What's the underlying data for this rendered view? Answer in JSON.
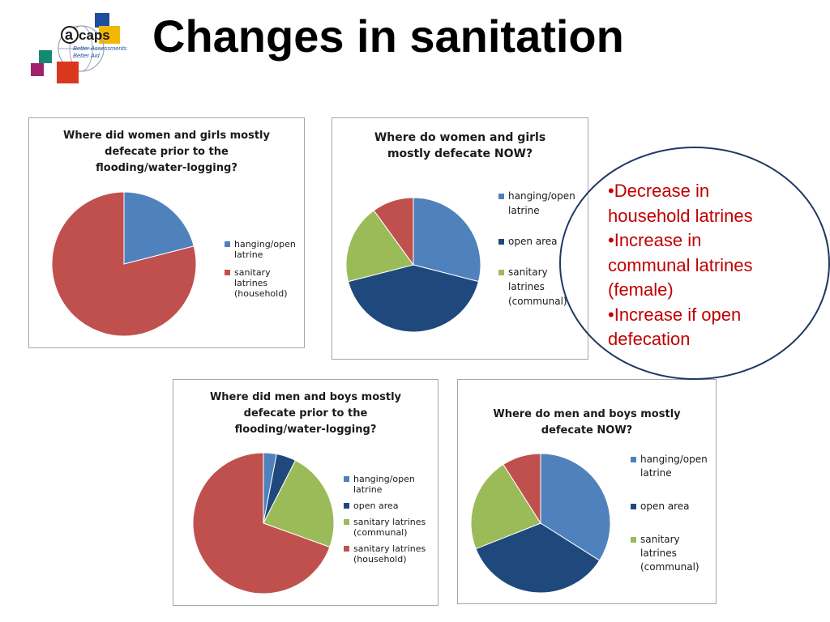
{
  "header": {
    "title": "Changes in sanitation",
    "logo": {
      "text": "caps",
      "tagline": [
        "Better Assessments",
        "Better Aid"
      ]
    }
  },
  "colors": {
    "hanging": "#4f81bd",
    "open": "#1f497d",
    "communal": "#9bbb59",
    "household": "#c0504d",
    "callout_text": "#c00000",
    "callout_border": "#1f3864"
  },
  "callout": {
    "items": [
      {
        "line1": "•Decrease in",
        "line2": "household latrines"
      },
      {
        "line1": "•Increase in",
        "line2": "communal latrines",
        "line3": "(female)"
      },
      {
        "line1": "•Increase if open",
        "line2": "defecation"
      }
    ]
  },
  "chart_data": [
    {
      "type": "pie",
      "title": [
        "Where did women and girls  mostly",
        "defecate prior to the",
        "flooding/water-logging?"
      ],
      "legend_position": "right",
      "slices": [
        {
          "label": "hanging/open latrine",
          "lines": [
            "hanging/open",
            "latrine"
          ],
          "value": 21,
          "color": "#4f81bd"
        },
        {
          "label": "sanitary latrines (household)",
          "lines": [
            "sanitary latrines",
            "(household)"
          ],
          "value": 79,
          "color": "#c0504d"
        }
      ]
    },
    {
      "type": "pie",
      "title": [
        "Where do women and girls",
        "mostly defecate NOW?"
      ],
      "legend_position": "right",
      "slices": [
        {
          "label": "hanging/open latrine",
          "lines": [
            "hanging/open",
            "latrine"
          ],
          "value": 29,
          "color": "#4f81bd"
        },
        {
          "label": "open area",
          "lines": [
            "open area"
          ],
          "value": 42,
          "color": "#1f497d"
        },
        {
          "label": "sanitary latrines (communal)",
          "lines": [
            "sanitary",
            "latrines",
            "(communal)"
          ],
          "value": 19,
          "color": "#9bbb59"
        },
        {
          "label": "",
          "lines": [],
          "value": 10,
          "color": "#c0504d"
        }
      ]
    },
    {
      "type": "pie",
      "title": [
        "Where did men and boys  mostly",
        "defecate prior to the",
        "flooding/water-logging?"
      ],
      "legend_position": "right",
      "slices": [
        {
          "label": "hanging/open latrine",
          "lines": [
            "hanging/open",
            "latrine"
          ],
          "value": 3,
          "color": "#4f81bd"
        },
        {
          "label": "open area",
          "lines": [
            "open area"
          ],
          "value": 4.5,
          "color": "#1f497d"
        },
        {
          "label": "sanitary latrines (communal)",
          "lines": [
            "sanitary latrines",
            "(communal)"
          ],
          "value": 23,
          "color": "#9bbb59"
        },
        {
          "label": "sanitary latrines (household)",
          "lines": [
            "sanitary latrines",
            "(household)"
          ],
          "value": 69.5,
          "color": "#c0504d"
        }
      ]
    },
    {
      "type": "pie",
      "title": [
        "Where do men and boys mostly",
        "defecate NOW?"
      ],
      "legend_position": "right",
      "slices": [
        {
          "label": "hanging/open latrine",
          "lines": [
            "hanging/open",
            "latrine"
          ],
          "value": 34,
          "color": "#4f81bd"
        },
        {
          "label": "open area",
          "lines": [
            "open area"
          ],
          "value": 35,
          "color": "#1f497d"
        },
        {
          "label": "sanitary latrines (communal)",
          "lines": [
            "sanitary",
            "latrines",
            "(communal)"
          ],
          "value": 22,
          "color": "#9bbb59"
        },
        {
          "label": "",
          "lines": [],
          "value": 9,
          "color": "#c0504d"
        }
      ]
    }
  ]
}
